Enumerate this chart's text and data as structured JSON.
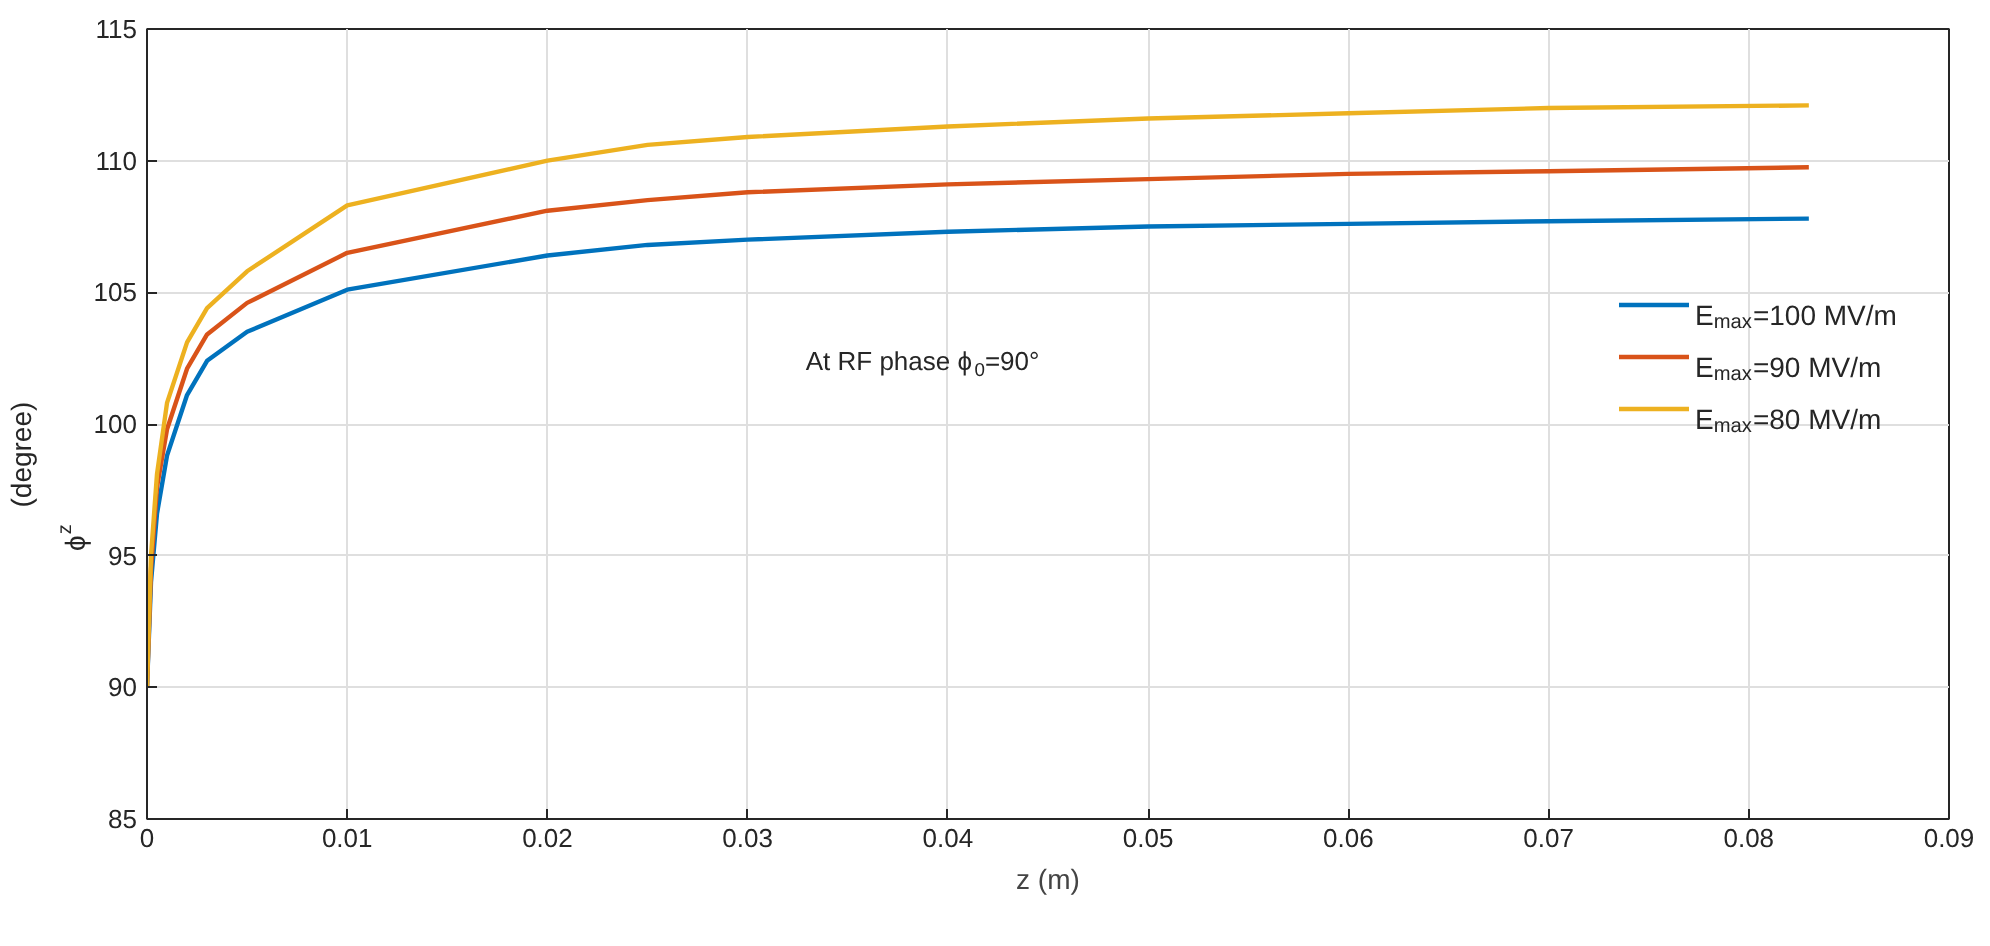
{
  "chart_data": {
    "type": "line",
    "xlabel": "z (m)",
    "ylabel": "ϕ$_{z}$  (degree)",
    "annotations": [
      "At RF phase ϕ$_{0}$=90°"
    ],
    "x": [
      0,
      0.0002,
      0.0005,
      0.001,
      0.002,
      0.003,
      0.005,
      0.01,
      0.02,
      0.025,
      0.03,
      0.04,
      0.05,
      0.06,
      0.07,
      0.083
    ],
    "series": [
      {
        "name": "E$_{max}$=100 MV/m",
        "color": "#0072bd",
        "values": [
          90,
          94,
          96.6,
          98.8,
          101.1,
          102.4,
          103.5,
          105.1,
          106.4,
          106.8,
          107.0,
          107.3,
          107.5,
          107.6,
          107.7,
          107.8
        ]
      },
      {
        "name": "E$_{max}$=90 MV/m",
        "color": "#d95319",
        "values": [
          90,
          94.5,
          97.6,
          99.8,
          102.1,
          103.4,
          104.6,
          106.5,
          108.1,
          108.5,
          108.8,
          109.1,
          109.3,
          109.5,
          109.6,
          109.75
        ]
      },
      {
        "name": "E$_{max}$=80 MV/m",
        "color": "#edb120",
        "values": [
          90,
          95,
          98.1,
          100.8,
          103.1,
          104.4,
          105.8,
          108.3,
          110.0,
          110.6,
          110.9,
          111.3,
          111.6,
          111.8,
          112.0,
          112.1
        ]
      }
    ],
    "xlim": [
      0,
      0.09
    ],
    "xticks": [
      0,
      0.01,
      0.02,
      0.03,
      0.04,
      0.05,
      0.06,
      0.07,
      0.08,
      0.09
    ],
    "ylim": [
      85,
      115
    ],
    "yticks": [
      85,
      90,
      95,
      100,
      105,
      110,
      115
    ],
    "grid": true,
    "legend": "right",
    "marker": "none",
    "line_style": "solid"
  }
}
